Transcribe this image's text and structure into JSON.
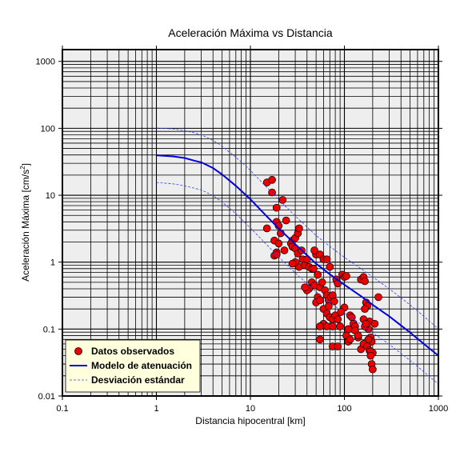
{
  "chart_data": {
    "type": "scatter",
    "title": "Aceleración Máxima vs Distancia",
    "xlabel": "Distancia hipocentral [km]",
    "ylabel_main": "Aceleración Máxima [cm/s",
    "ylabel_sup": "2",
    "ylabel_tail": "]",
    "x_scale": "log",
    "y_scale": "log",
    "xlim": [
      0.1,
      1000
    ],
    "ylim": [
      0.01,
      1500
    ],
    "grid": true,
    "legend_position": "bottom-left",
    "x_ticks": [
      {
        "value": 0.1,
        "label": "0.1"
      },
      {
        "value": 1,
        "label": "1"
      },
      {
        "value": 10,
        "label": "10"
      },
      {
        "value": 100,
        "label": "100"
      },
      {
        "value": 1000,
        "label": "1000"
      }
    ],
    "y_ticks": [
      {
        "value": 0.01,
        "label": "0.01"
      },
      {
        "value": 0.1,
        "label": "0.1"
      },
      {
        "value": 1,
        "label": "1"
      },
      {
        "value": 10,
        "label": "10"
      },
      {
        "value": 100,
        "label": "100"
      },
      {
        "value": 1000,
        "label": "1000"
      }
    ],
    "colors": {
      "plot_background": "#eeeeee",
      "points": "#ee0000",
      "model": "#0000dd",
      "std": "#3344ff",
      "legend_background": "#ffffdd"
    },
    "series": [
      {
        "name": "Datos observados",
        "kind": "points",
        "points": [
          [
            15,
            15.5
          ],
          [
            17,
            17
          ],
          [
            17,
            11
          ],
          [
            19,
            6.5
          ],
          [
            22,
            8.5
          ],
          [
            24,
            4.2
          ],
          [
            19,
            4
          ],
          [
            20,
            3.5
          ],
          [
            21,
            2.7
          ],
          [
            15,
            3.2
          ],
          [
            18,
            2.1
          ],
          [
            20,
            1.9
          ],
          [
            19,
            1.4
          ],
          [
            18,
            1.25
          ],
          [
            19,
            1.3
          ],
          [
            23,
            1.5
          ],
          [
            27,
            1.9
          ],
          [
            28,
            2.1
          ],
          [
            30,
            2.3
          ],
          [
            32,
            2.7
          ],
          [
            33,
            3.2
          ],
          [
            28,
            1.7
          ],
          [
            30,
            1.6
          ],
          [
            32,
            1.35
          ],
          [
            35,
            1.5
          ],
          [
            36,
            1.1
          ],
          [
            33,
            0.85
          ],
          [
            30,
            1.0
          ],
          [
            28,
            0.95
          ],
          [
            38,
            0.9
          ],
          [
            40,
            1.1
          ],
          [
            42,
            0.85
          ],
          [
            45,
            0.8
          ],
          [
            50,
            1.3
          ],
          [
            48,
            1.5
          ],
          [
            55,
            1.3
          ],
          [
            60,
            1.1
          ],
          [
            65,
            1.1
          ],
          [
            70,
            0.85
          ],
          [
            52,
            0.65
          ],
          [
            47,
            0.8
          ],
          [
            45,
            0.5
          ],
          [
            42,
            0.4
          ],
          [
            40,
            0.38
          ],
          [
            38,
            0.42
          ],
          [
            48,
            0.45
          ],
          [
            55,
            0.42
          ],
          [
            58,
            0.5
          ],
          [
            62,
            0.38
          ],
          [
            65,
            0.32
          ],
          [
            68,
            0.27
          ],
          [
            72,
            0.3
          ],
          [
            75,
            0.32
          ],
          [
            78,
            0.26
          ],
          [
            82,
            0.55
          ],
          [
            85,
            0.48
          ],
          [
            95,
            0.65
          ],
          [
            100,
            0.6
          ],
          [
            105,
            0.62
          ],
          [
            52,
            0.3
          ],
          [
            50,
            0.25
          ],
          [
            55,
            0.27
          ],
          [
            60,
            0.2
          ],
          [
            65,
            0.17
          ],
          [
            70,
            0.15
          ],
          [
            75,
            0.14
          ],
          [
            80,
            0.16
          ],
          [
            85,
            0.14
          ],
          [
            90,
            0.11
          ],
          [
            60,
            0.12
          ],
          [
            55,
            0.11
          ],
          [
            65,
            0.11
          ],
          [
            75,
            0.11
          ],
          [
            100,
            0.21
          ],
          [
            110,
            0.1
          ],
          [
            115,
            0.16
          ],
          [
            120,
            0.15
          ],
          [
            125,
            0.12
          ],
          [
            130,
            0.11
          ],
          [
            105,
            0.08
          ],
          [
            110,
            0.065
          ],
          [
            115,
            0.07
          ],
          [
            130,
            0.095
          ],
          [
            140,
            0.075
          ],
          [
            150,
            0.55
          ],
          [
            160,
            0.6
          ],
          [
            165,
            0.52
          ],
          [
            170,
            0.25
          ],
          [
            175,
            0.22
          ],
          [
            165,
            0.2
          ],
          [
            180,
            0.1
          ],
          [
            185,
            0.13
          ],
          [
            190,
            0.075
          ],
          [
            195,
            0.065
          ],
          [
            160,
            0.14
          ],
          [
            165,
            0.11
          ],
          [
            170,
            0.12
          ],
          [
            180,
            0.07
          ],
          [
            150,
            0.05
          ],
          [
            160,
            0.06
          ],
          [
            175,
            0.055
          ],
          [
            185,
            0.048
          ],
          [
            200,
            0.044
          ],
          [
            190,
            0.046
          ],
          [
            190,
            0.04
          ],
          [
            195,
            0.03
          ],
          [
            200,
            0.025
          ],
          [
            210,
            0.12
          ],
          [
            230,
            0.3
          ],
          [
            140,
            0.08
          ],
          [
            55,
            0.07
          ],
          [
            75,
            0.055
          ],
          [
            85,
            0.055
          ],
          [
            92,
            0.18
          ],
          [
            68,
            0.22
          ]
        ]
      },
      {
        "name": "Modelo de atenuación",
        "kind": "line",
        "x": [
          1,
          1.5,
          2,
          2.5,
          3,
          4,
          5,
          7,
          10,
          15,
          20,
          30,
          50,
          70,
          100,
          150,
          200,
          300,
          500,
          700,
          1000
        ],
        "y": [
          39.5,
          38,
          36,
          33,
          31,
          25.5,
          20.5,
          13.8,
          8.7,
          4.8,
          3.2,
          1.85,
          0.95,
          0.66,
          0.46,
          0.31,
          0.23,
          0.155,
          0.089,
          0.06,
          0.04
        ]
      },
      {
        "name": "Desviación estándar",
        "kind": "dashed",
        "x": [
          1,
          1.5,
          2,
          2.5,
          3,
          4,
          5,
          7,
          10,
          15,
          20,
          30,
          50,
          70,
          100,
          150,
          200,
          300,
          500,
          700,
          1000
        ],
        "y": [
          101,
          98,
          92,
          86,
          80,
          66,
          54,
          37,
          23.5,
          13,
          8.6,
          4.9,
          2.5,
          1.72,
          1.18,
          0.8,
          0.6,
          0.4,
          0.23,
          0.155,
          0.1
        ]
      },
      {
        "name": "",
        "kind": "dashed",
        "x": [
          1,
          1.5,
          2,
          2.5,
          3,
          4,
          5,
          7,
          10,
          15,
          20,
          30,
          50,
          70,
          100,
          150,
          200,
          300,
          500,
          700,
          1000
        ],
        "y": [
          15.5,
          14.8,
          13.8,
          12.8,
          12,
          9.9,
          7.9,
          5.3,
          3.25,
          1.8,
          1.2,
          0.69,
          0.36,
          0.25,
          0.175,
          0.118,
          0.088,
          0.059,
          0.034,
          0.023,
          0.015
        ]
      }
    ]
  }
}
